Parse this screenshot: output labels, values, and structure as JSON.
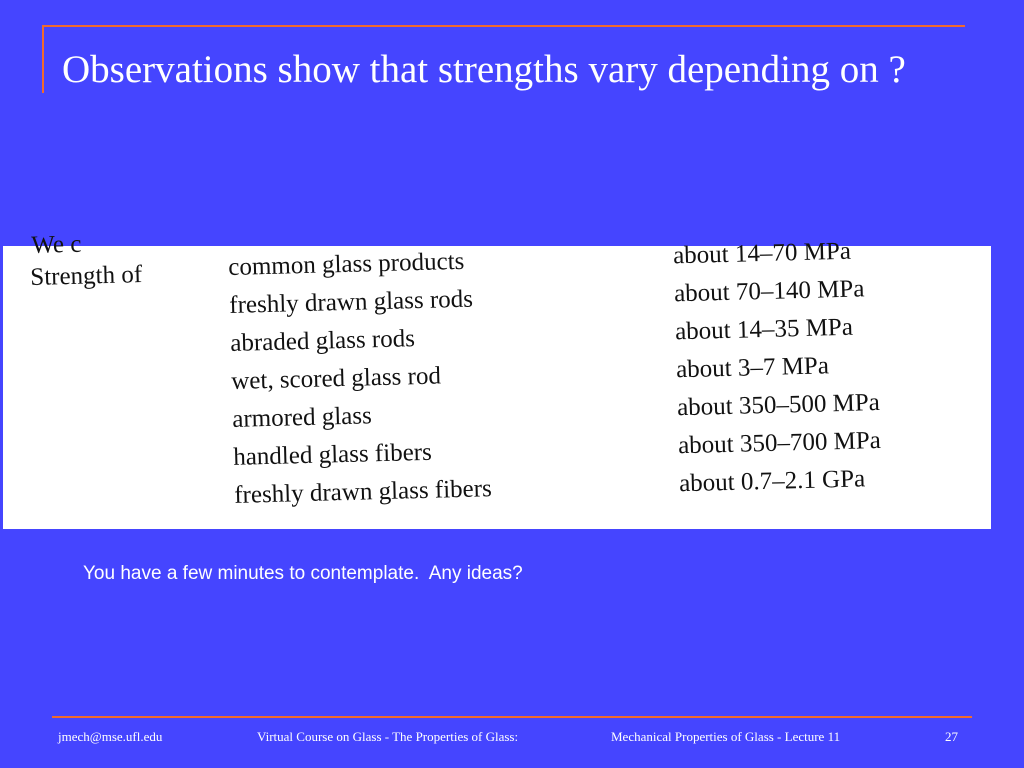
{
  "slide": {
    "title": "Observations show that strengths vary depending on ?",
    "prompt": "You have a few minutes to contemplate.  Any ideas?"
  },
  "scan": {
    "clipped_heading": "We c",
    "heading": "Strength of",
    "rows": [
      {
        "product": "common glass products",
        "value": "about 14–70 MPa"
      },
      {
        "product": "freshly drawn glass rods",
        "value": "about 70–140 MPa"
      },
      {
        "product": "abraded glass rods",
        "value": "about 14–35 MPa"
      },
      {
        "product": "wet, scored glass rod",
        "value": "about 3–7 MPa"
      },
      {
        "product": "armored glass",
        "value": "about 350–500 MPa"
      },
      {
        "product": "handled glass fibers",
        "value": "about 350–700 MPa"
      },
      {
        "product": "freshly drawn glass fibers",
        "value": "about 0.7–2.1 GPa"
      }
    ]
  },
  "footer": {
    "email": "jmech@mse.ufl.edu",
    "course": "Virtual Course on Glass - The Properties of Glass:",
    "lecture": "Mechanical Properties of Glass - Lecture 11",
    "page_number": "27"
  },
  "colors": {
    "background": "#4545FF",
    "accent_rule": "#F06A2C",
    "text": "#FFFFFF"
  }
}
